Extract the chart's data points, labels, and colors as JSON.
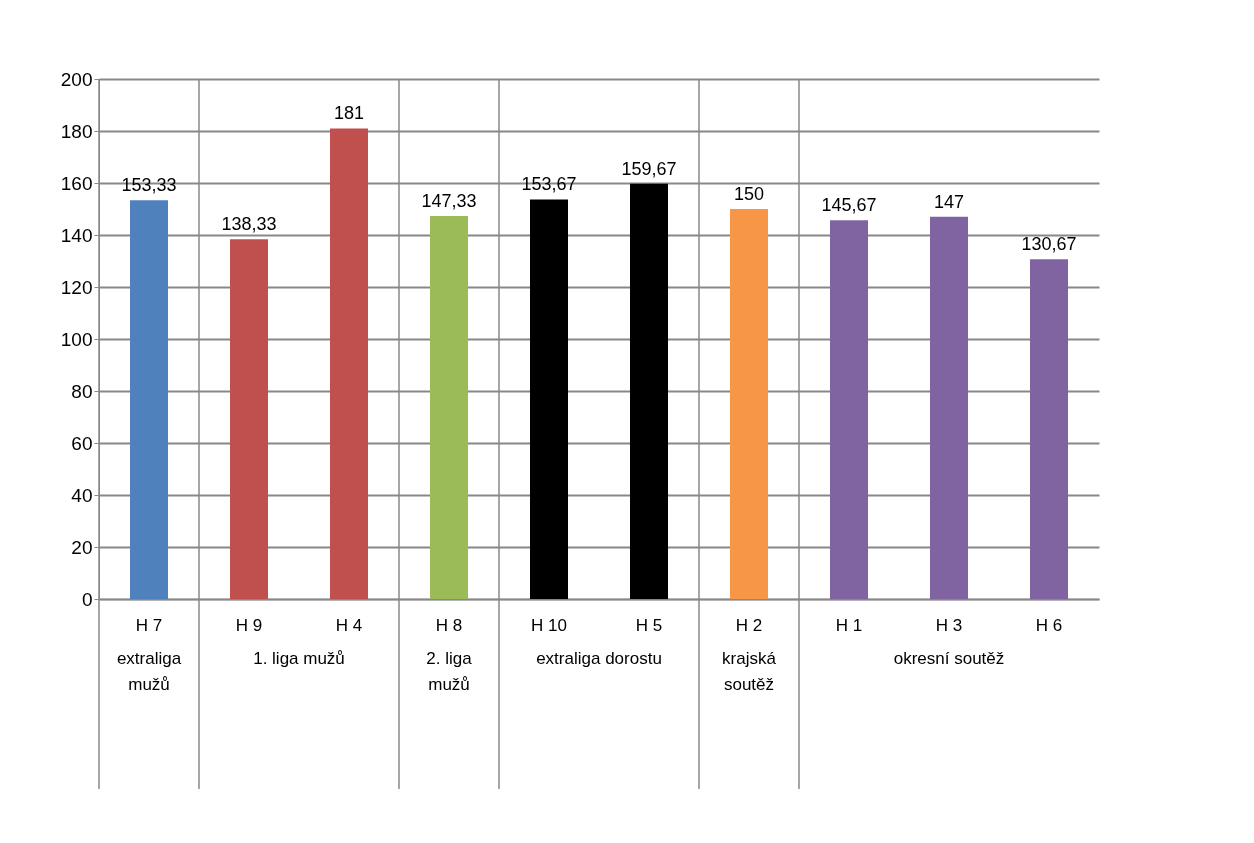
{
  "chart_data": {
    "type": "bar",
    "categories": [
      "H 7",
      "H 9",
      "H 4",
      "H 8",
      "H 10",
      "H 5",
      "H 2",
      "H 1",
      "H 3",
      "H 6"
    ],
    "values": [
      153.33,
      138.33,
      181,
      147.33,
      153.67,
      159.67,
      150,
      145.67,
      147,
      130.67
    ],
    "colors": [
      "#4f81bd",
      "#c0504d",
      "#c0504d",
      "#9bbb59",
      "#000000",
      "#000000",
      "#f79646",
      "#8064a2",
      "#8064a2",
      "#8064a2"
    ],
    "value_labels": [
      "153,33",
      "138,33",
      "181",
      "147,33",
      "153,67",
      "159,67",
      "150",
      "145,67",
      "147",
      "130,67"
    ],
    "ylim": [
      0,
      200
    ],
    "yticks": [
      0,
      20,
      40,
      60,
      80,
      100,
      120,
      140,
      160,
      180,
      200
    ],
    "grid": "y",
    "annotations": [
      "extraliga mužů",
      "1. liga mužů",
      "2. liga mužů",
      "extraliga dorostu",
      "krajská soutěž",
      "okresní soutěž"
    ]
  }
}
